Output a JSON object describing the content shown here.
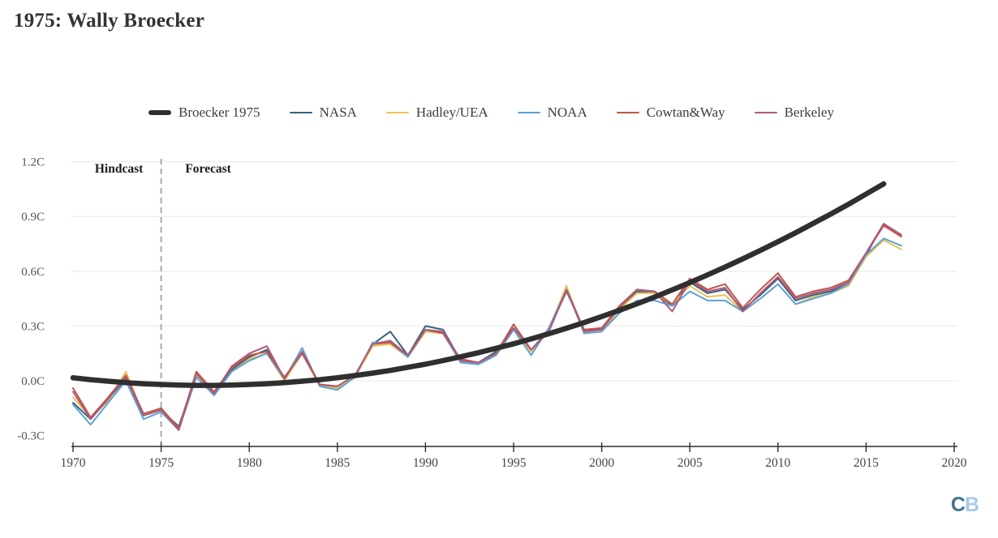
{
  "page": {
    "title": "1975: Wally Broecker"
  },
  "logo": {
    "letter_c": "C",
    "letter_b": "B",
    "c_color": "#44708e",
    "b_color": "#a8cae4"
  },
  "chart_data": {
    "type": "line",
    "title": "1975: Wally Broecker",
    "legend_position": "top",
    "grid": "horizontal",
    "annotations": {
      "hindcast_label": "Hindcast",
      "forecast_label": "Forecast",
      "divider_year": 1975
    },
    "x_axis": {
      "range": [
        1970,
        2020
      ],
      "ticks": [
        1970,
        1975,
        1980,
        1985,
        1990,
        1995,
        2000,
        2005,
        2010,
        2015,
        2020
      ]
    },
    "y_axis": {
      "unit": "C",
      "range": [
        -0.3,
        1.2
      ],
      "ticks": [
        {
          "value": 1.2,
          "label": "1.2C",
          "grid": true
        },
        {
          "value": 0.9,
          "label": "0.9C",
          "grid": true
        },
        {
          "value": 0.6,
          "label": "0.6C",
          "grid": true
        },
        {
          "value": 0.3,
          "label": "0.3C",
          "grid": true
        },
        {
          "value": 0.0,
          "label": "0.0C",
          "grid": true
        },
        {
          "value": -0.3,
          "label": "-0.3C",
          "grid": false
        }
      ]
    },
    "x_years_start": 1970,
    "series": [
      {
        "name": "Broecker 1975",
        "color": "#2f2f2f",
        "width": 6.5,
        "role": "forecast-curve",
        "values": [
          0.017,
          0.006,
          -0.002,
          -0.01,
          -0.016,
          -0.02,
          -0.023,
          -0.025,
          -0.025,
          -0.023,
          -0.02,
          -0.016,
          -0.01,
          -0.002,
          0.006,
          0.017,
          0.029,
          0.042,
          0.057,
          0.074,
          0.091,
          0.111,
          0.132,
          0.154,
          0.178,
          0.203,
          0.23,
          0.258,
          0.288,
          0.319,
          0.352,
          0.386,
          0.422,
          0.459,
          0.498,
          0.538,
          0.58,
          0.623,
          0.668,
          0.714,
          0.762,
          0.811,
          0.862,
          0.914,
          0.967,
          1.023,
          1.079
        ]
      },
      {
        "name": "NASA",
        "color": "#36617f",
        "width": 2,
        "role": "observations",
        "values": [
          -0.12,
          -0.21,
          -0.1,
          0.01,
          -0.19,
          -0.16,
          -0.25,
          0.03,
          -0.07,
          0.06,
          0.13,
          0.17,
          0.01,
          0.15,
          -0.02,
          -0.04,
          0.02,
          0.2,
          0.27,
          0.14,
          0.3,
          0.28,
          0.11,
          0.1,
          0.16,
          0.29,
          0.17,
          0.28,
          0.49,
          0.28,
          0.28,
          0.39,
          0.49,
          0.48,
          0.41,
          0.54,
          0.48,
          0.5,
          0.39,
          0.47,
          0.56,
          0.44,
          0.47,
          0.49,
          0.53,
          0.69,
          0.86,
          0.8
        ]
      },
      {
        "name": "Hadley/UEA",
        "color": "#e9c353",
        "width": 2,
        "role": "observations",
        "values": [
          -0.09,
          -0.2,
          -0.11,
          0.05,
          -0.19,
          -0.15,
          -0.26,
          0.03,
          -0.08,
          0.05,
          0.12,
          0.15,
          0.0,
          0.15,
          -0.03,
          -0.04,
          0.02,
          0.19,
          0.2,
          0.13,
          0.27,
          0.26,
          0.1,
          0.09,
          0.14,
          0.28,
          0.16,
          0.28,
          0.52,
          0.26,
          0.27,
          0.39,
          0.48,
          0.48,
          0.42,
          0.52,
          0.46,
          0.47,
          0.38,
          0.45,
          0.53,
          0.42,
          0.46,
          0.48,
          0.52,
          0.68,
          0.77,
          0.72
        ]
      },
      {
        "name": "NOAA",
        "color": "#5ba3d9",
        "width": 2,
        "role": "observations",
        "values": [
          -0.13,
          -0.24,
          -0.12,
          0.0,
          -0.21,
          -0.17,
          -0.27,
          0.02,
          -0.08,
          0.05,
          0.11,
          0.15,
          0.01,
          0.18,
          -0.03,
          -0.05,
          0.02,
          0.21,
          0.21,
          0.13,
          0.28,
          0.26,
          0.1,
          0.09,
          0.14,
          0.28,
          0.14,
          0.29,
          0.5,
          0.26,
          0.27,
          0.37,
          0.44,
          0.44,
          0.41,
          0.49,
          0.44,
          0.44,
          0.38,
          0.45,
          0.53,
          0.42,
          0.45,
          0.48,
          0.53,
          0.69,
          0.78,
          0.74
        ]
      },
      {
        "name": "Cowtan&Way",
        "color": "#c0564b",
        "width": 2,
        "role": "observations",
        "values": [
          -0.04,
          -0.2,
          -0.09,
          0.03,
          -0.18,
          -0.15,
          -0.26,
          0.05,
          -0.06,
          0.07,
          0.14,
          0.16,
          0.02,
          0.15,
          -0.02,
          -0.03,
          0.03,
          0.2,
          0.21,
          0.14,
          0.28,
          0.26,
          0.12,
          0.1,
          0.15,
          0.31,
          0.17,
          0.27,
          0.5,
          0.28,
          0.29,
          0.41,
          0.5,
          0.49,
          0.42,
          0.56,
          0.5,
          0.53,
          0.4,
          0.5,
          0.59,
          0.46,
          0.49,
          0.51,
          0.55,
          0.7,
          0.85,
          0.79
        ]
      },
      {
        "name": "Berkeley",
        "color": "#b05a78",
        "width": 2,
        "role": "observations",
        "values": [
          -0.06,
          -0.21,
          -0.1,
          0.02,
          -0.19,
          -0.16,
          -0.27,
          0.04,
          -0.07,
          0.08,
          0.15,
          0.19,
          0.01,
          0.16,
          -0.02,
          -0.03,
          0.03,
          0.2,
          0.22,
          0.14,
          0.28,
          0.27,
          0.11,
          0.1,
          0.15,
          0.29,
          0.17,
          0.27,
          0.5,
          0.27,
          0.28,
          0.4,
          0.5,
          0.49,
          0.38,
          0.55,
          0.49,
          0.51,
          0.38,
          0.48,
          0.57,
          0.45,
          0.48,
          0.5,
          0.54,
          0.7,
          0.86,
          0.8
        ]
      }
    ]
  }
}
